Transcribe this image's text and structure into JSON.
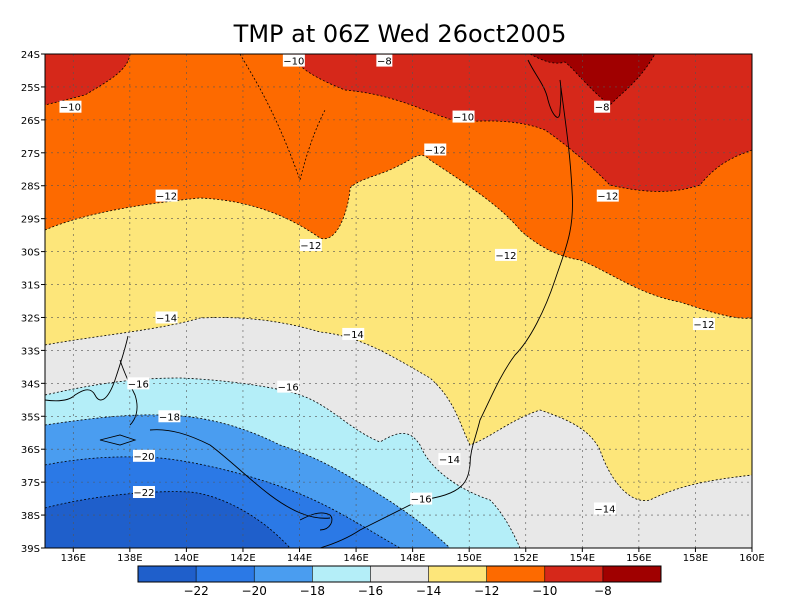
{
  "chart_data": {
    "type": "contour-map",
    "title": "TMP at 06Z Wed 26oct2005",
    "x_ticks": [
      "136E",
      "138E",
      "140E",
      "142E",
      "144E",
      "146E",
      "148E",
      "150E",
      "152E",
      "154E",
      "156E",
      "158E",
      "160E"
    ],
    "y_ticks": [
      "24S",
      "25S",
      "26S",
      "27S",
      "28S",
      "29S",
      "30S",
      "31S",
      "32S",
      "33S",
      "34S",
      "35S",
      "36S",
      "37S",
      "38S",
      "39S"
    ],
    "xlim": [
      135,
      160
    ],
    "ylim": [
      -39,
      -24
    ],
    "grid": true,
    "contour_labels": [
      {
        "text": "−10",
        "lon": 135.9,
        "lat": -25.6
      },
      {
        "text": "−10",
        "lon": 143.8,
        "lat": -24.2
      },
      {
        "text": "−8",
        "lon": 147.0,
        "lat": -24.2
      },
      {
        "text": "−10",
        "lon": 149.8,
        "lat": -25.9
      },
      {
        "text": "−8",
        "lon": 154.7,
        "lat": -25.6
      },
      {
        "text": "−12",
        "lon": 148.8,
        "lat": -26.9
      },
      {
        "text": "−12",
        "lon": 139.3,
        "lat": -28.3
      },
      {
        "text": "−12",
        "lon": 154.9,
        "lat": -28.3
      },
      {
        "text": "−12",
        "lon": 144.4,
        "lat": -29.8
      },
      {
        "text": "−12",
        "lon": 151.3,
        "lat": -30.1
      },
      {
        "text": "−12",
        "lon": 158.3,
        "lat": -32.2
      },
      {
        "text": "−14",
        "lon": 139.3,
        "lat": -32.0
      },
      {
        "text": "−14",
        "lon": 145.9,
        "lat": -32.5
      },
      {
        "text": "−16",
        "lon": 138.3,
        "lat": -34.0
      },
      {
        "text": "−16",
        "lon": 143.6,
        "lat": -34.1
      },
      {
        "text": "−18",
        "lon": 139.4,
        "lat": -35.0
      },
      {
        "text": "−20",
        "lon": 138.5,
        "lat": -36.2
      },
      {
        "text": "−14",
        "lon": 149.3,
        "lat": -36.3
      },
      {
        "text": "−22",
        "lon": 138.5,
        "lat": -37.3
      },
      {
        "text": "−16",
        "lon": 148.3,
        "lat": -37.5
      },
      {
        "text": "−14",
        "lon": 154.8,
        "lat": -37.8
      }
    ],
    "colorbar": {
      "labels": [
        "−22",
        "−20",
        "−18",
        "−16",
        "−14",
        "−12",
        "−10",
        "−8"
      ],
      "colors": [
        "#1f5fcb",
        "#2b79e6",
        "#4a9df0",
        "#b4eef8",
        "#e8e8e8",
        "#fde67a",
        "#fd6a00",
        "#d6281a",
        "#a00000"
      ]
    }
  }
}
